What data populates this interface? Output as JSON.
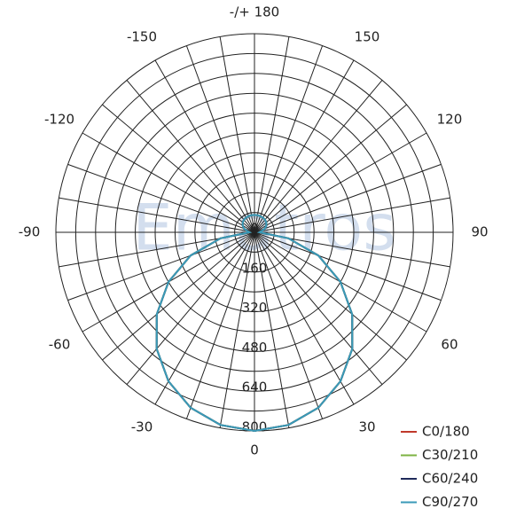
{
  "chart_data": {
    "type": "polar",
    "watermark": "Ematros",
    "x": [
      -180,
      -170,
      -160,
      -150,
      -140,
      -130,
      -120,
      -110,
      -100,
      -90,
      -80,
      -70,
      -60,
      -50,
      -40,
      -30,
      -20,
      -10,
      0,
      10,
      20,
      30,
      40,
      50,
      60,
      70,
      80,
      90,
      100,
      110,
      120,
      130,
      140,
      150,
      160,
      170,
      180
    ],
    "xticks": [
      {
        "value": 180,
        "label": "-/+ 180"
      },
      -150,
      -120,
      -90,
      -60,
      -30,
      0,
      30,
      60,
      90,
      120,
      150
    ],
    "ylim": [
      0,
      800
    ],
    "yticks": [
      0,
      160,
      320,
      480,
      640,
      800
    ],
    "grid": true,
    "legend": "lower right",
    "series": [
      {
        "name": "C0/180",
        "color": "#c0392b",
        "values": [
          70,
          70,
          69,
          68,
          66,
          62,
          55,
          45,
          30,
          20,
          139,
          274,
          400,
          514,
          613,
          693,
          752,
          788,
          800,
          788,
          752,
          693,
          613,
          514,
          400,
          274,
          139,
          20,
          30,
          45,
          55,
          62,
          66,
          68,
          69,
          70,
          70
        ]
      },
      {
        "name": "C30/210",
        "color": "#7cb342",
        "values": [
          70,
          70,
          69,
          68,
          66,
          62,
          55,
          45,
          30,
          20,
          139,
          274,
          400,
          514,
          613,
          693,
          752,
          788,
          800,
          788,
          752,
          693,
          613,
          514,
          400,
          274,
          139,
          20,
          30,
          45,
          55,
          62,
          66,
          68,
          69,
          70,
          70
        ]
      },
      {
        "name": "C60/240",
        "color": "#1f2a5a",
        "values": [
          70,
          70,
          69,
          68,
          66,
          62,
          55,
          45,
          30,
          20,
          139,
          274,
          400,
          514,
          613,
          693,
          752,
          788,
          800,
          788,
          752,
          693,
          613,
          514,
          400,
          274,
          139,
          20,
          30,
          45,
          55,
          62,
          66,
          68,
          69,
          70,
          70
        ]
      },
      {
        "name": "C90/270",
        "color": "#3a9ab8",
        "values": [
          70,
          70,
          69,
          68,
          66,
          62,
          55,
          45,
          30,
          20,
          139,
          274,
          400,
          514,
          613,
          693,
          752,
          788,
          800,
          788,
          752,
          693,
          613,
          514,
          400,
          274,
          139,
          20,
          30,
          45,
          55,
          62,
          66,
          68,
          69,
          70,
          70
        ]
      }
    ]
  }
}
